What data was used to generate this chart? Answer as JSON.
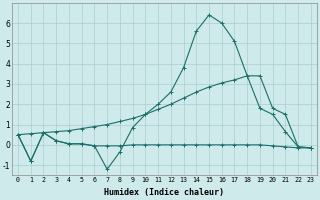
{
  "xlabel": "Humidex (Indice chaleur)",
  "bg_color": "#ceeaea",
  "grid_color": "#aacece",
  "line_color": "#1a6e6a",
  "xlim": [
    -0.5,
    23.5
  ],
  "ylim": [
    -1.5,
    7.0
  ],
  "x": [
    0,
    1,
    2,
    3,
    4,
    5,
    6,
    7,
    8,
    9,
    10,
    11,
    12,
    13,
    14,
    15,
    16,
    17,
    18,
    19,
    20,
    21,
    22,
    23
  ],
  "line1_y": [
    0.5,
    -0.8,
    0.6,
    0.2,
    0.05,
    0.05,
    -0.05,
    -1.2,
    -0.35,
    0.85,
    1.5,
    2.0,
    2.6,
    3.8,
    5.6,
    6.4,
    6.0,
    5.1,
    3.4,
    1.8,
    1.5,
    0.65,
    -0.1,
    -0.15
  ],
  "line2_y": [
    0.5,
    0.55,
    0.6,
    0.65,
    0.7,
    0.8,
    0.9,
    1.0,
    1.15,
    1.3,
    1.5,
    1.75,
    2.0,
    2.3,
    2.6,
    2.85,
    3.05,
    3.2,
    3.4,
    3.4,
    1.8,
    1.5,
    -0.1,
    -0.15
  ],
  "line3_y": [
    0.5,
    -0.8,
    0.6,
    0.2,
    0.05,
    0.05,
    -0.05,
    -0.05,
    -0.05,
    0.0,
    0.0,
    0.0,
    0.0,
    0.0,
    0.0,
    0.0,
    0.0,
    0.0,
    0.0,
    0.0,
    -0.05,
    -0.1,
    -0.15,
    -0.15
  ],
  "yticks": [
    -1,
    0,
    1,
    2,
    3,
    4,
    5,
    6
  ],
  "xticks": [
    0,
    1,
    2,
    3,
    4,
    5,
    6,
    7,
    8,
    9,
    10,
    11,
    12,
    13,
    14,
    15,
    16,
    17,
    18,
    19,
    20,
    21,
    22,
    23
  ]
}
